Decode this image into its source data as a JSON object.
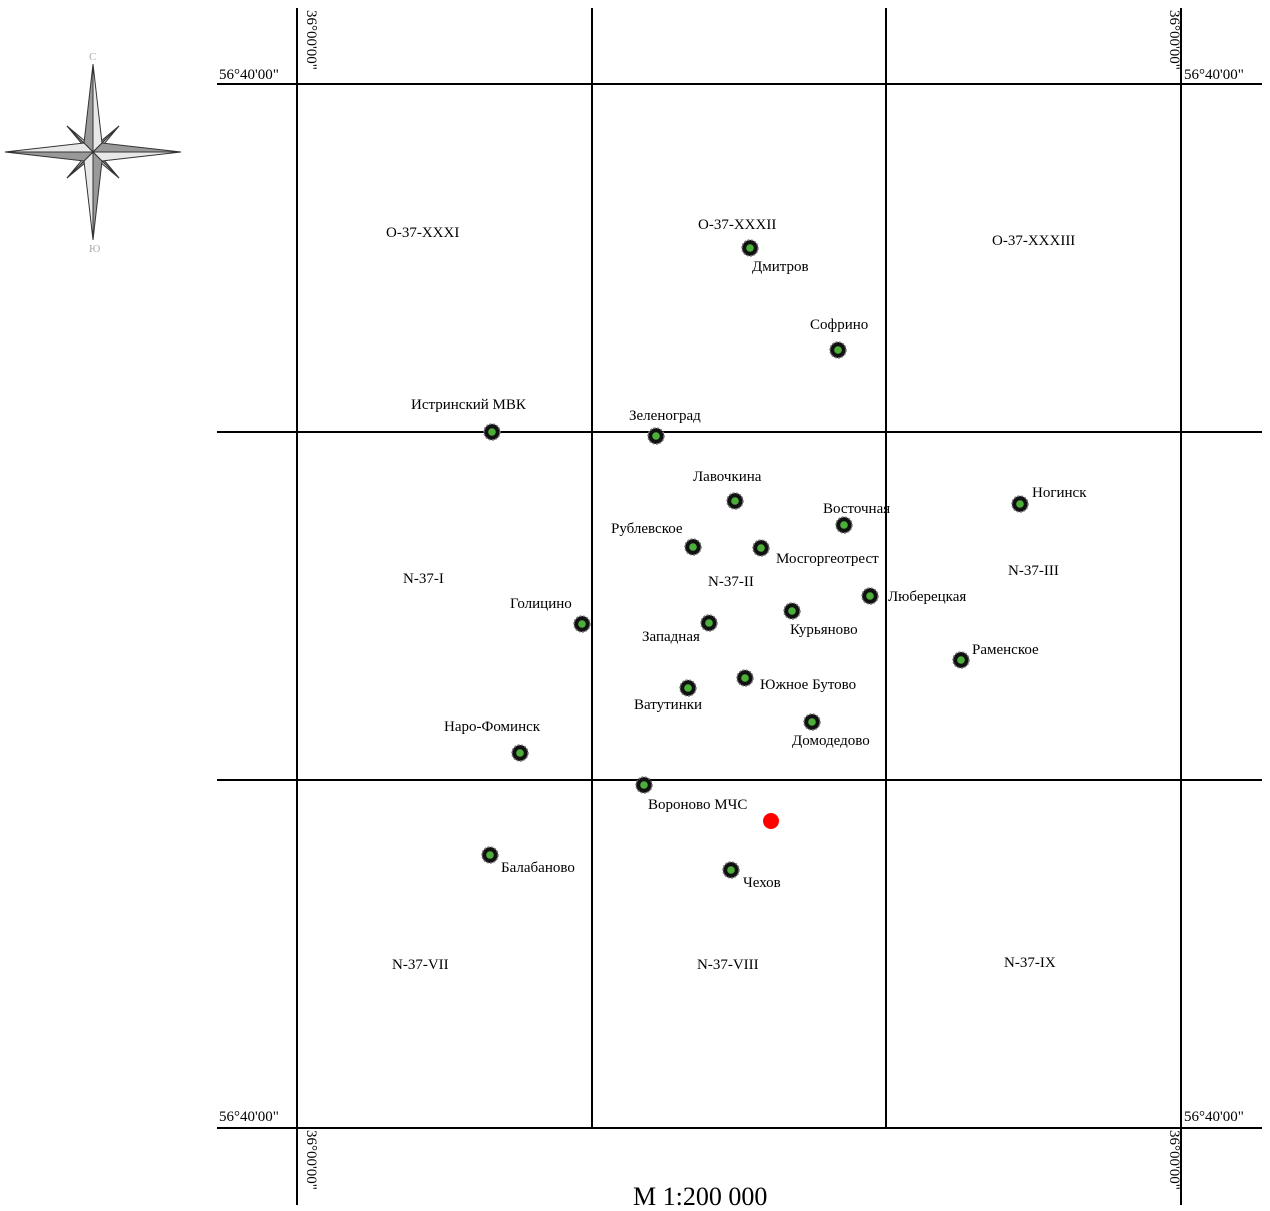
{
  "map": {
    "scale": "М 1:200 000",
    "compass": {
      "north_label": "С",
      "south_label": "Ю"
    },
    "coordinates": {
      "lat_top_left": "56°40'00\"",
      "lat_top_right": "56°40'00\"",
      "lat_bottom_left": "56°40'00\"",
      "lat_bottom_right": "56°40'00\"",
      "lon_top_left": "36°00'00\"",
      "lon_top_right": "36°00'00\"",
      "lon_bottom_left": "36°00'00\"",
      "lon_bottom_right": "36°00'00\""
    },
    "sheets": [
      "O-37-XXXI",
      "O-37-XXXII",
      "O-37-XXXIII",
      "N-37-I",
      "N-37-II",
      "N-37-III",
      "N-37-VII",
      "N-37-VIII",
      "N-37-IX"
    ],
    "stations": [
      "Дмитров",
      "Софрино",
      "Истринский МВК",
      "Зеленоград",
      "Лавочкина",
      "Восточная",
      "Ногинск",
      "Рублевское",
      "Мосгоргеотрест",
      "Люберецкая",
      "Голицино",
      "Западная",
      "Курьяново",
      "Раменское",
      "Южное Бутово",
      "Ватутинки",
      "Домодедово",
      "Наро-Фоминск",
      "Вороново МЧС",
      "Балабаново",
      "Чехов"
    ],
    "colors": {
      "station_fill": "#4caf3a",
      "station_ring": "#111111",
      "target_point": "#ff0000",
      "grid": "#000000",
      "compass_fill": "#999999"
    }
  }
}
